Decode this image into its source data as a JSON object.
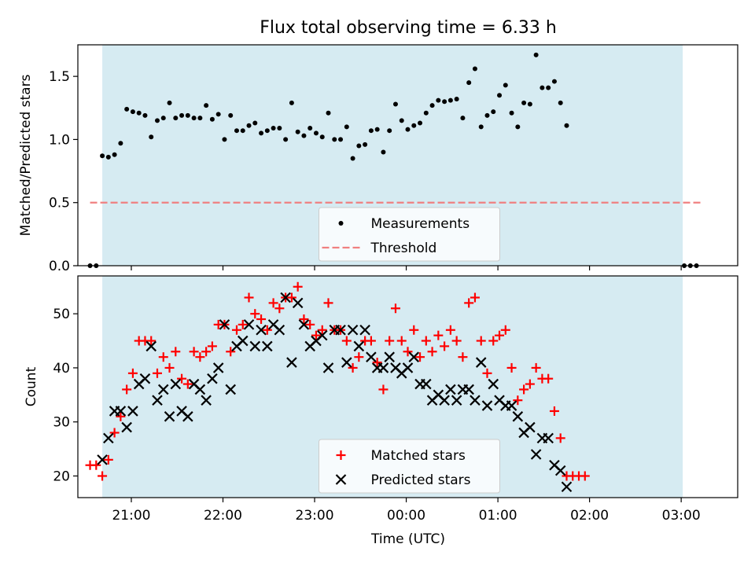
{
  "title": "Flux total observing time = 6.33 h",
  "colors": {
    "observing_window": "#add8e6",
    "measurements": "#000000",
    "threshold": "#f08080",
    "matched": "#ff0000",
    "predicted": "#000000"
  },
  "chart_data": [
    {
      "type": "scatter",
      "ylabel": "Matched/Predicted stars",
      "ylim": [
        0,
        1.75
      ],
      "yticks": [
        "0.0",
        "0.5",
        "1.0",
        "1.5"
      ],
      "xlim": [
        "20:25",
        "03:37"
      ],
      "xtick_labels_visible": false,
      "observing_window": [
        "20:41",
        "03:01"
      ],
      "legend": {
        "placement": "lower-center",
        "entries": [
          "Measurements",
          "Threshold"
        ]
      },
      "threshold": {
        "name": "Threshold",
        "y": 0.5,
        "x_range": [
          "20:33",
          "03:13"
        ]
      },
      "series": [
        {
          "name": "Measurements",
          "marker": "dot",
          "points": [
            [
              "20:33",
              0.0
            ],
            [
              "20:37",
              0.0
            ],
            [
              "20:41",
              0.87
            ],
            [
              "20:45",
              0.86
            ],
            [
              "20:49",
              0.88
            ],
            [
              "20:53",
              0.97
            ],
            [
              "20:57",
              1.24
            ],
            [
              "21:01",
              1.22
            ],
            [
              "21:05",
              1.21
            ],
            [
              "21:09",
              1.19
            ],
            [
              "21:13",
              1.02
            ],
            [
              "21:17",
              1.15
            ],
            [
              "21:21",
              1.17
            ],
            [
              "21:25",
              1.29
            ],
            [
              "21:29",
              1.17
            ],
            [
              "21:33",
              1.19
            ],
            [
              "21:37",
              1.19
            ],
            [
              "21:41",
              1.17
            ],
            [
              "21:45",
              1.17
            ],
            [
              "21:49",
              1.27
            ],
            [
              "21:53",
              1.16
            ],
            [
              "21:57",
              1.2
            ],
            [
              "22:01",
              1.0
            ],
            [
              "22:05",
              1.19
            ],
            [
              "22:09",
              1.07
            ],
            [
              "22:13",
              1.07
            ],
            [
              "22:17",
              1.11
            ],
            [
              "22:21",
              1.13
            ],
            [
              "22:25",
              1.05
            ],
            [
              "22:29",
              1.07
            ],
            [
              "22:33",
              1.09
            ],
            [
              "22:37",
              1.09
            ],
            [
              "22:41",
              1.0
            ],
            [
              "22:45",
              1.29
            ],
            [
              "22:49",
              1.06
            ],
            [
              "22:53",
              1.03
            ],
            [
              "22:57",
              1.09
            ],
            [
              "23:01",
              1.05
            ],
            [
              "23:05",
              1.02
            ],
            [
              "23:09",
              1.21
            ],
            [
              "23:13",
              1.0
            ],
            [
              "23:17",
              1.0
            ],
            [
              "23:21",
              1.1
            ],
            [
              "23:25",
              0.85
            ],
            [
              "23:29",
              0.95
            ],
            [
              "23:33",
              0.96
            ],
            [
              "23:37",
              1.07
            ],
            [
              "23:41",
              1.08
            ],
            [
              "23:45",
              0.9
            ],
            [
              "23:49",
              1.07
            ],
            [
              "23:53",
              1.28
            ],
            [
              "23:57",
              1.15
            ],
            [
              "00:01",
              1.08
            ],
            [
              "00:05",
              1.11
            ],
            [
              "00:09",
              1.13
            ],
            [
              "00:13",
              1.21
            ],
            [
              "00:17",
              1.27
            ],
            [
              "00:21",
              1.31
            ],
            [
              "00:25",
              1.3
            ],
            [
              "00:29",
              1.31
            ],
            [
              "00:33",
              1.32
            ],
            [
              "00:37",
              1.17
            ],
            [
              "00:41",
              1.45
            ],
            [
              "00:45",
              1.56
            ],
            [
              "00:49",
              1.1
            ],
            [
              "00:53",
              1.19
            ],
            [
              "00:57",
              1.22
            ],
            [
              "01:01",
              1.35
            ],
            [
              "01:05",
              1.43
            ],
            [
              "01:09",
              1.21
            ],
            [
              "01:13",
              1.1
            ],
            [
              "01:17",
              1.29
            ],
            [
              "01:21",
              1.28
            ],
            [
              "01:25",
              1.67
            ],
            [
              "01:29",
              1.41
            ],
            [
              "01:33",
              1.41
            ],
            [
              "01:37",
              1.46
            ],
            [
              "01:41",
              1.29
            ],
            [
              "01:45",
              1.11
            ],
            [
              "03:02",
              0.0
            ],
            [
              "03:06",
              0.0
            ],
            [
              "03:10",
              0.0
            ]
          ]
        }
      ]
    },
    {
      "type": "scatter",
      "xlabel": "Time (UTC)",
      "ylabel": "Count",
      "ylim": [
        16,
        57
      ],
      "yticks": [
        "20",
        "30",
        "40",
        "50"
      ],
      "xlim": [
        "20:25",
        "03:37"
      ],
      "xticks": [
        "21:00",
        "22:00",
        "23:00",
        "00:00",
        "01:00",
        "02:00",
        "03:00"
      ],
      "observing_window": [
        "20:41",
        "03:01"
      ],
      "legend": {
        "placement": "lower-center",
        "entries": [
          "Matched stars",
          "Predicted stars"
        ]
      },
      "series": [
        {
          "name": "Matched stars",
          "marker": "plus",
          "points": [
            [
              "20:33",
              22
            ],
            [
              "20:37",
              22
            ],
            [
              "20:41",
              20
            ],
            [
              "20:45",
              23
            ],
            [
              "20:49",
              28
            ],
            [
              "20:53",
              31
            ],
            [
              "20:57",
              36
            ],
            [
              "21:01",
              39
            ],
            [
              "21:05",
              45
            ],
            [
              "21:09",
              45
            ],
            [
              "21:13",
              45
            ],
            [
              "21:17",
              39
            ],
            [
              "21:21",
              42
            ],
            [
              "21:25",
              40
            ],
            [
              "21:29",
              43
            ],
            [
              "21:33",
              38
            ],
            [
              "21:37",
              37
            ],
            [
              "21:41",
              43
            ],
            [
              "21:45",
              42
            ],
            [
              "21:49",
              43
            ],
            [
              "21:53",
              44
            ],
            [
              "21:57",
              48
            ],
            [
              "22:01",
              48
            ],
            [
              "22:05",
              43
            ],
            [
              "22:09",
              47
            ],
            [
              "22:13",
              48
            ],
            [
              "22:17",
              53
            ],
            [
              "22:21",
              50
            ],
            [
              "22:25",
              49
            ],
            [
              "22:29",
              47
            ],
            [
              "22:33",
              52
            ],
            [
              "22:37",
              51
            ],
            [
              "22:41",
              53
            ],
            [
              "22:45",
              53
            ],
            [
              "22:49",
              55
            ],
            [
              "22:53",
              49
            ],
            [
              "22:57",
              48
            ],
            [
              "23:01",
              46
            ],
            [
              "23:05",
              47
            ],
            [
              "23:09",
              52
            ],
            [
              "23:13",
              47
            ],
            [
              "23:17",
              47
            ],
            [
              "23:21",
              45
            ],
            [
              "23:25",
              40
            ],
            [
              "23:29",
              42
            ],
            [
              "23:33",
              45
            ],
            [
              "23:37",
              45
            ],
            [
              "23:41",
              41
            ],
            [
              "23:45",
              36
            ],
            [
              "23:49",
              45
            ],
            [
              "23:53",
              51
            ],
            [
              "23:57",
              45
            ],
            [
              "00:01",
              43
            ],
            [
              "00:05",
              47
            ],
            [
              "00:09",
              42
            ],
            [
              "00:13",
              45
            ],
            [
              "00:17",
              43
            ],
            [
              "00:21",
              46
            ],
            [
              "00:25",
              44
            ],
            [
              "00:29",
              47
            ],
            [
              "00:33",
              45
            ],
            [
              "00:37",
              42
            ],
            [
              "00:41",
              52
            ],
            [
              "00:45",
              53
            ],
            [
              "00:49",
              45
            ],
            [
              "00:53",
              39
            ],
            [
              "00:57",
              45
            ],
            [
              "01:01",
              46
            ],
            [
              "01:05",
              47
            ],
            [
              "01:09",
              40
            ],
            [
              "01:13",
              34
            ],
            [
              "01:17",
              36
            ],
            [
              "01:21",
              37
            ],
            [
              "01:25",
              40
            ],
            [
              "01:29",
              38
            ],
            [
              "01:33",
              38
            ],
            [
              "01:37",
              32
            ],
            [
              "01:41",
              27
            ],
            [
              "01:45",
              20
            ],
            [
              "01:49",
              20
            ],
            [
              "01:53",
              20
            ],
            [
              "01:57",
              20
            ]
          ]
        },
        {
          "name": "Predicted stars",
          "marker": "x",
          "points": [
            [
              "20:41",
              23
            ],
            [
              "20:45",
              27
            ],
            [
              "20:49",
              32
            ],
            [
              "20:53",
              32
            ],
            [
              "20:57",
              29
            ],
            [
              "21:01",
              32
            ],
            [
              "21:05",
              37
            ],
            [
              "21:09",
              38
            ],
            [
              "21:13",
              44
            ],
            [
              "21:17",
              34
            ],
            [
              "21:21",
              36
            ],
            [
              "21:25",
              31
            ],
            [
              "21:29",
              37
            ],
            [
              "21:33",
              32
            ],
            [
              "21:37",
              31
            ],
            [
              "21:41",
              37
            ],
            [
              "21:45",
              36
            ],
            [
              "21:49",
              34
            ],
            [
              "21:53",
              38
            ],
            [
              "21:57",
              40
            ],
            [
              "22:01",
              48
            ],
            [
              "22:05",
              36
            ],
            [
              "22:09",
              44
            ],
            [
              "22:13",
              45
            ],
            [
              "22:17",
              48
            ],
            [
              "22:21",
              44
            ],
            [
              "22:25",
              47
            ],
            [
              "22:29",
              44
            ],
            [
              "22:33",
              48
            ],
            [
              "22:37",
              47
            ],
            [
              "22:41",
              53
            ],
            [
              "22:45",
              41
            ],
            [
              "22:49",
              52
            ],
            [
              "22:53",
              48
            ],
            [
              "22:57",
              44
            ],
            [
              "23:01",
              45
            ],
            [
              "23:05",
              46
            ],
            [
              "23:09",
              40
            ],
            [
              "23:13",
              47
            ],
            [
              "23:17",
              47
            ],
            [
              "23:21",
              41
            ],
            [
              "23:25",
              47
            ],
            [
              "23:29",
              44
            ],
            [
              "23:33",
              47
            ],
            [
              "23:37",
              42
            ],
            [
              "23:41",
              40
            ],
            [
              "23:45",
              40
            ],
            [
              "23:49",
              42
            ],
            [
              "23:53",
              40
            ],
            [
              "23:57",
              39
            ],
            [
              "00:01",
              40
            ],
            [
              "00:05",
              42
            ],
            [
              "00:09",
              37
            ],
            [
              "00:13",
              37
            ],
            [
              "00:17",
              34
            ],
            [
              "00:21",
              35
            ],
            [
              "00:25",
              34
            ],
            [
              "00:29",
              36
            ],
            [
              "00:33",
              34
            ],
            [
              "00:37",
              36
            ],
            [
              "00:41",
              36
            ],
            [
              "00:45",
              34
            ],
            [
              "00:49",
              41
            ],
            [
              "00:53",
              33
            ],
            [
              "00:57",
              37
            ],
            [
              "01:01",
              34
            ],
            [
              "01:05",
              33
            ],
            [
              "01:09",
              33
            ],
            [
              "01:13",
              31
            ],
            [
              "01:17",
              28
            ],
            [
              "01:21",
              29
            ],
            [
              "01:25",
              24
            ],
            [
              "01:29",
              27
            ],
            [
              "01:33",
              27
            ],
            [
              "01:37",
              22
            ],
            [
              "01:41",
              21
            ],
            [
              "01:45",
              18
            ]
          ]
        }
      ]
    }
  ]
}
